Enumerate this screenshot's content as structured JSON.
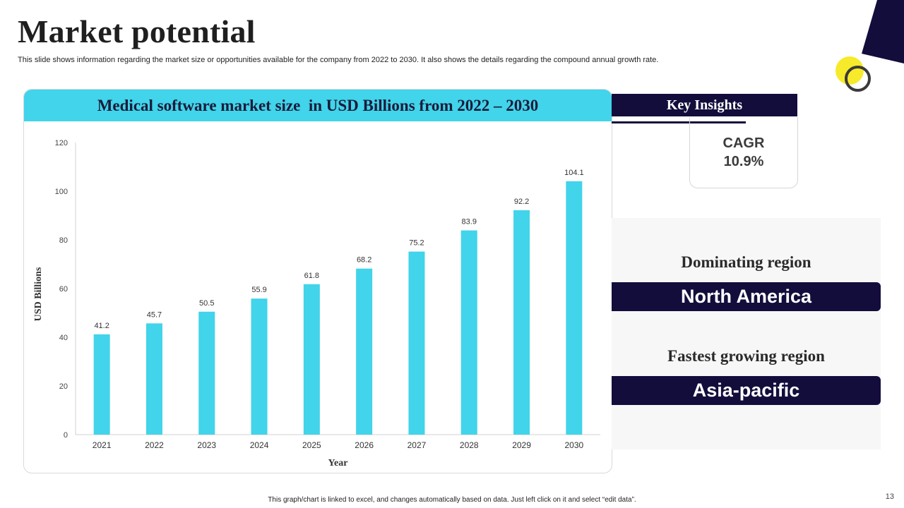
{
  "slide": {
    "title": "Market potential",
    "subtitle": "This slide shows information regarding the market size or opportunities available for the company from 2022 to 2030. It also shows the details regarding the compound annual growth rate.",
    "footer": "This graph/chart is linked to excel, and changes automatically based on data. Just left click on it and select “edit data”.",
    "page_number": "13"
  },
  "colors": {
    "bar": "#41d4ea",
    "navy": "#130d3c",
    "accent_yellow": "#f7ea2a"
  },
  "chart_data": {
    "type": "bar",
    "title": "Medical software market size  in USD Billions from 2022 – 2030",
    "xlabel": "Year",
    "ylabel": "USD Billions",
    "categories": [
      "2021",
      "2022",
      "2023",
      "2024",
      "2025",
      "2026",
      "2027",
      "2028",
      "2029",
      "2030"
    ],
    "values": [
      41.2,
      45.7,
      50.5,
      55.9,
      61.8,
      68.2,
      75.2,
      83.9,
      92.2,
      104.1
    ],
    "data_labels": [
      "41.2",
      "45.7",
      "50.5",
      "55.9",
      "61.8",
      "68.2",
      "75.2",
      "83.9",
      "92.2",
      "104.1"
    ],
    "ylim": [
      0,
      120
    ],
    "yticks": [
      0,
      20,
      40,
      60,
      80,
      100,
      120
    ],
    "grid": false,
    "legend": "none"
  },
  "insights": {
    "title": "Key Insights",
    "cagr_label": "CAGR",
    "cagr_value": "10.9%"
  },
  "regions": {
    "dominating_label": "Dominating region",
    "dominating_value": "North America",
    "fastest_label": "Fastest growing region",
    "fastest_value": "Asia-pacific"
  }
}
